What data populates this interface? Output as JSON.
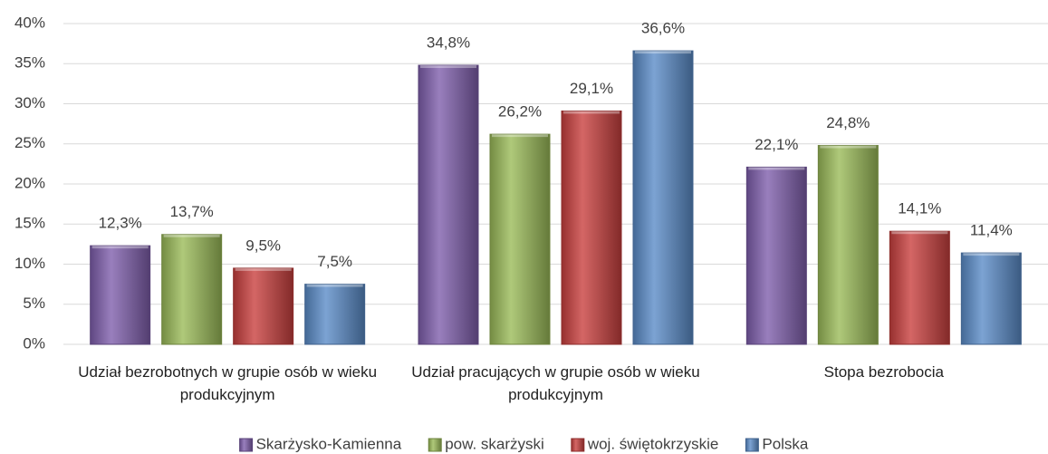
{
  "chart_data": {
    "type": "bar",
    "categories": [
      "Udział bezrobotnych w grupie osób w wieku produkcyjnym",
      "Udział pracujących w grupie osób w wieku produkcyjnym",
      "Stopa bezrobocia"
    ],
    "series": [
      {
        "name": "Skarżysko-Kamienna",
        "color": "#7f5fad",
        "values": [
          12.3,
          34.8,
          22.1
        ],
        "value_labels": [
          "12,3%",
          "34,8%",
          "22,1%"
        ]
      },
      {
        "name": "pow. skarżyski",
        "color": "#9bbb59",
        "values": [
          13.7,
          26.2,
          24.8
        ],
        "value_labels": [
          "13,7%",
          "26,2%",
          "24,8%"
        ]
      },
      {
        "name": "woj. świętokrzyskie",
        "color": "#c9403f",
        "values": [
          9.5,
          29.1,
          14.1
        ],
        "value_labels": [
          "9,5%",
          "29,1%",
          "14,1%"
        ]
      },
      {
        "name": "Polska",
        "color": "#5b8cc8",
        "values": [
          7.5,
          36.6,
          11.4
        ],
        "value_labels": [
          "7,5%",
          "36,6%",
          "11,4%"
        ]
      }
    ],
    "ylim": [
      0,
      40
    ],
    "yticks": [
      {
        "value": 0,
        "label": "0%"
      },
      {
        "value": 5,
        "label": "5%"
      },
      {
        "value": 10,
        "label": "10%"
      },
      {
        "value": 15,
        "label": "15%"
      },
      {
        "value": 20,
        "label": "20%"
      },
      {
        "value": 25,
        "label": "25%"
      },
      {
        "value": 30,
        "label": "30%"
      },
      {
        "value": 35,
        "label": "35%"
      },
      {
        "value": 40,
        "label": "40%"
      }
    ],
    "grid": true,
    "legend": "bottom"
  }
}
